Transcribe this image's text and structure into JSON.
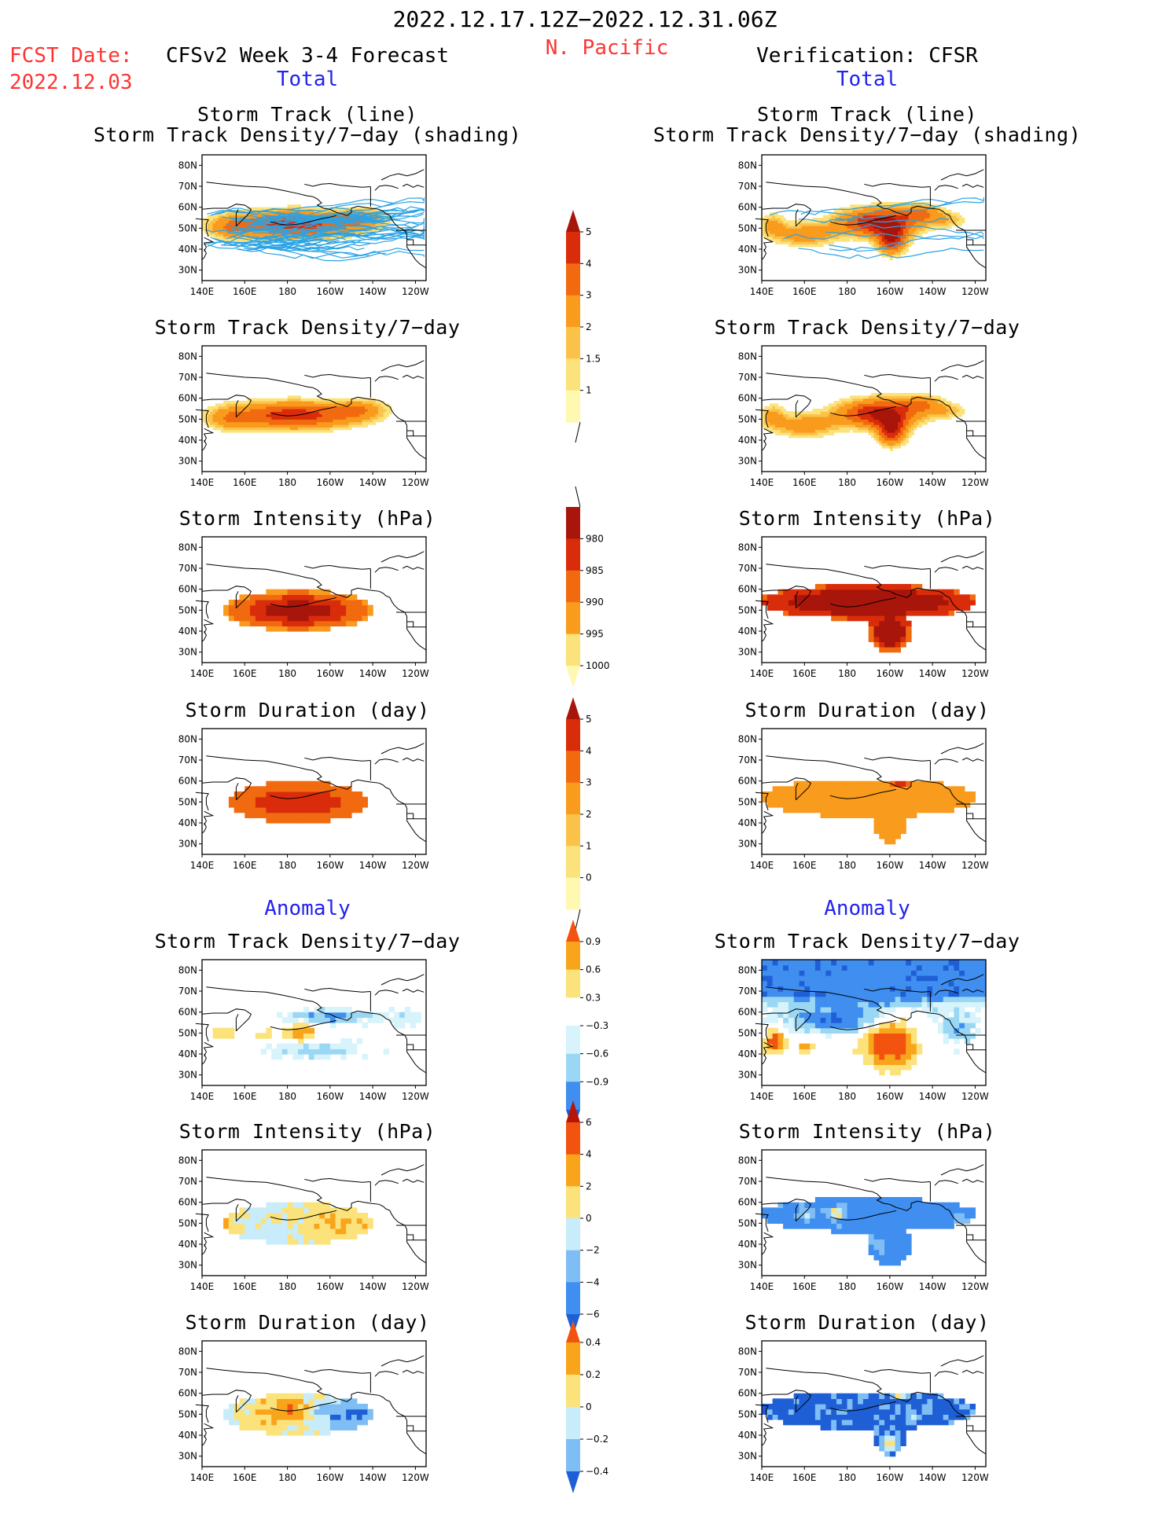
{
  "header": {
    "period": "2022.12.17.12Z−2022.12.31.06Z",
    "region": "N. Pacific",
    "fcst_label": "FCST Date:",
    "fcst_date": "2022.12.03",
    "left_model": "CFSv2 Week 3-4 Forecast",
    "right_model": "Verification: CFSR",
    "total_label": "Total",
    "anomaly_label": "Anomaly"
  },
  "panel_titles": {
    "track_line": "Storm Track (line)",
    "track_shading": "Storm Track Density/7−day (shading)",
    "density": "Storm Track Density/7−day",
    "intensity": "Storm Intensity (hPa)",
    "duration": "Storm Duration (day)"
  },
  "chart_data": [
    {
      "type": "heatmap",
      "name": "CFSv2 Storm Track (line) + Storm Track Density/7-day (shading)",
      "colorbar": "density",
      "x_ticks": [
        "140E",
        "160E",
        "180",
        "160W",
        "140W",
        "120W"
      ],
      "y_ticks": [
        "80N",
        "70N",
        "60N",
        "50N",
        "40N",
        "30N"
      ],
      "shape": "cfs_density",
      "tracks": "many"
    },
    {
      "type": "heatmap",
      "name": "CFSR Storm Track (line) + Storm Track Density/7-day (shading)",
      "colorbar": "density",
      "x_ticks": [
        "140E",
        "160E",
        "180",
        "160W",
        "140W",
        "120W"
      ],
      "y_ticks": [
        "80N",
        "70N",
        "60N",
        "50N",
        "40N",
        "30N"
      ],
      "shape": "cfsr_density",
      "tracks": "few"
    },
    {
      "type": "heatmap",
      "name": "CFSv2 Storm Track Density/7-day",
      "colorbar": "density",
      "x_ticks": [
        "140E",
        "160E",
        "180",
        "160W",
        "140W",
        "120W"
      ],
      "y_ticks": [
        "80N",
        "70N",
        "60N",
        "50N",
        "40N",
        "30N"
      ],
      "shape": "cfs_density"
    },
    {
      "type": "heatmap",
      "name": "CFSR Storm Track Density/7-day",
      "colorbar": "density",
      "x_ticks": [
        "140E",
        "160E",
        "180",
        "160W",
        "140W",
        "120W"
      ],
      "y_ticks": [
        "80N",
        "70N",
        "60N",
        "50N",
        "40N",
        "30N"
      ],
      "shape": "cfsr_density"
    },
    {
      "type": "heatmap",
      "name": "CFSv2 Storm Intensity (hPa)",
      "colorbar": "intensity",
      "x_ticks": [
        "140E",
        "160E",
        "180",
        "160W",
        "140W",
        "120W"
      ],
      "y_ticks": [
        "80N",
        "70N",
        "60N",
        "50N",
        "40N",
        "30N"
      ],
      "shape": "cfs_intensity"
    },
    {
      "type": "heatmap",
      "name": "CFSR Storm Intensity (hPa)",
      "colorbar": "intensity",
      "x_ticks": [
        "140E",
        "160E",
        "180",
        "160W",
        "140W",
        "120W"
      ],
      "y_ticks": [
        "80N",
        "70N",
        "60N",
        "50N",
        "40N",
        "30N"
      ],
      "shape": "cfsr_intensity"
    },
    {
      "type": "heatmap",
      "name": "CFSv2 Storm Duration (day)",
      "colorbar": "duration",
      "x_ticks": [
        "140E",
        "160E",
        "180",
        "160W",
        "140W",
        "120W"
      ],
      "y_ticks": [
        "80N",
        "70N",
        "60N",
        "50N",
        "40N",
        "30N"
      ],
      "shape": "cfs_duration"
    },
    {
      "type": "heatmap",
      "name": "CFSR Storm Duration (day)",
      "colorbar": "duration",
      "x_ticks": [
        "140E",
        "160E",
        "180",
        "160W",
        "140W",
        "120W"
      ],
      "y_ticks": [
        "80N",
        "70N",
        "60N",
        "50N",
        "40N",
        "30N"
      ],
      "shape": "cfsr_duration"
    },
    {
      "type": "heatmap",
      "name": "CFSv2 Anomaly Storm Track Density/7-day",
      "colorbar": "anom_density",
      "x_ticks": [
        "140E",
        "160E",
        "180",
        "160W",
        "140W",
        "120W"
      ],
      "y_ticks": [
        "80N",
        "70N",
        "60N",
        "50N",
        "40N",
        "30N"
      ],
      "shape": "cfs_anom_density"
    },
    {
      "type": "heatmap",
      "name": "CFSR Anomaly Storm Track Density/7-day",
      "colorbar": "anom_density",
      "x_ticks": [
        "140E",
        "160E",
        "180",
        "160W",
        "140W",
        "120W"
      ],
      "y_ticks": [
        "80N",
        "70N",
        "60N",
        "50N",
        "40N",
        "30N"
      ],
      "shape": "cfsr_anom_density"
    },
    {
      "type": "heatmap",
      "name": "CFSv2 Anomaly Storm Intensity (hPa)",
      "colorbar": "anom_intensity",
      "x_ticks": [
        "140E",
        "160E",
        "180",
        "160W",
        "140W",
        "120W"
      ],
      "y_ticks": [
        "80N",
        "70N",
        "60N",
        "50N",
        "40N",
        "30N"
      ],
      "shape": "cfs_anom_intensity"
    },
    {
      "type": "heatmap",
      "name": "CFSR Anomaly Storm Intensity (hPa)",
      "colorbar": "anom_intensity",
      "x_ticks": [
        "140E",
        "160E",
        "180",
        "160W",
        "140W",
        "120W"
      ],
      "y_ticks": [
        "80N",
        "70N",
        "60N",
        "50N",
        "40N",
        "30N"
      ],
      "shape": "cfsr_anom_intensity"
    },
    {
      "type": "heatmap",
      "name": "CFSv2 Anomaly Storm Duration (day)",
      "colorbar": "anom_duration",
      "x_ticks": [
        "140E",
        "160E",
        "180",
        "160W",
        "140W",
        "120W"
      ],
      "y_ticks": [
        "80N",
        "70N",
        "60N",
        "50N",
        "40N",
        "30N"
      ],
      "shape": "cfs_anom_duration"
    },
    {
      "type": "heatmap",
      "name": "CFSR Anomaly Storm Duration (day)",
      "colorbar": "anom_duration",
      "x_ticks": [
        "140E",
        "160E",
        "180",
        "160W",
        "140W",
        "120W"
      ],
      "y_ticks": [
        "80N",
        "70N",
        "60N",
        "50N",
        "40N",
        "30N"
      ],
      "shape": "cfsr_anom_duration"
    }
  ],
  "colorbars": {
    "density": {
      "labels": [
        "1",
        "1.5",
        "2",
        "3",
        "4",
        "5"
      ],
      "colors": [
        "#fff8b0",
        "#fce27a",
        "#fbc24a",
        "#f99b1c",
        "#f26a10",
        "#d92c0a",
        "#a8150a"
      ],
      "extend": "max"
    },
    "intensity": {
      "labels": [
        "980",
        "985",
        "990",
        "995",
        "1000"
      ],
      "colors": [
        "#a8150a",
        "#d92c0a",
        "#f26a10",
        "#f99b1c",
        "#fce27a",
        "#fff8b0"
      ],
      "extend": "min"
    },
    "duration": {
      "labels": [
        "0",
        "1",
        "2",
        "3",
        "4",
        "5"
      ],
      "colors": [
        "#fff8b0",
        "#fce27a",
        "#fbc24a",
        "#f99b1c",
        "#f26a10",
        "#d92c0a",
        "#a8150a"
      ],
      "extend": "max"
    },
    "anom_density": {
      "labels": [
        "−0.9",
        "−0.6",
        "−0.3",
        "0.3",
        "0.6",
        "0.9"
      ],
      "colors": [
        "#1f5fd6",
        "#3f8ef0",
        "#9ad7f5",
        "#d7f3fb",
        "#ffffff",
        "#fce27a",
        "#f9a51c",
        "#f2530f"
      ],
      "extend": "both"
    },
    "anom_intensity": {
      "labels": [
        "−6",
        "−4",
        "−2",
        "0",
        "2",
        "4",
        "6"
      ],
      "colors": [
        "#1f5fd6",
        "#3f8ef0",
        "#7fbef5",
        "#c8ecfa",
        "#fce27a",
        "#f9a51c",
        "#f2530f",
        "#b5160a"
      ],
      "extend": "both"
    },
    "anom_duration": {
      "labels": [
        "−0.4",
        "−0.2",
        "0",
        "0.2",
        "0.4"
      ],
      "colors": [
        "#1f5fd6",
        "#7fbef5",
        "#c8ecfa",
        "#fce27a",
        "#f9a51c",
        "#f2530f"
      ],
      "extend": "both"
    }
  }
}
